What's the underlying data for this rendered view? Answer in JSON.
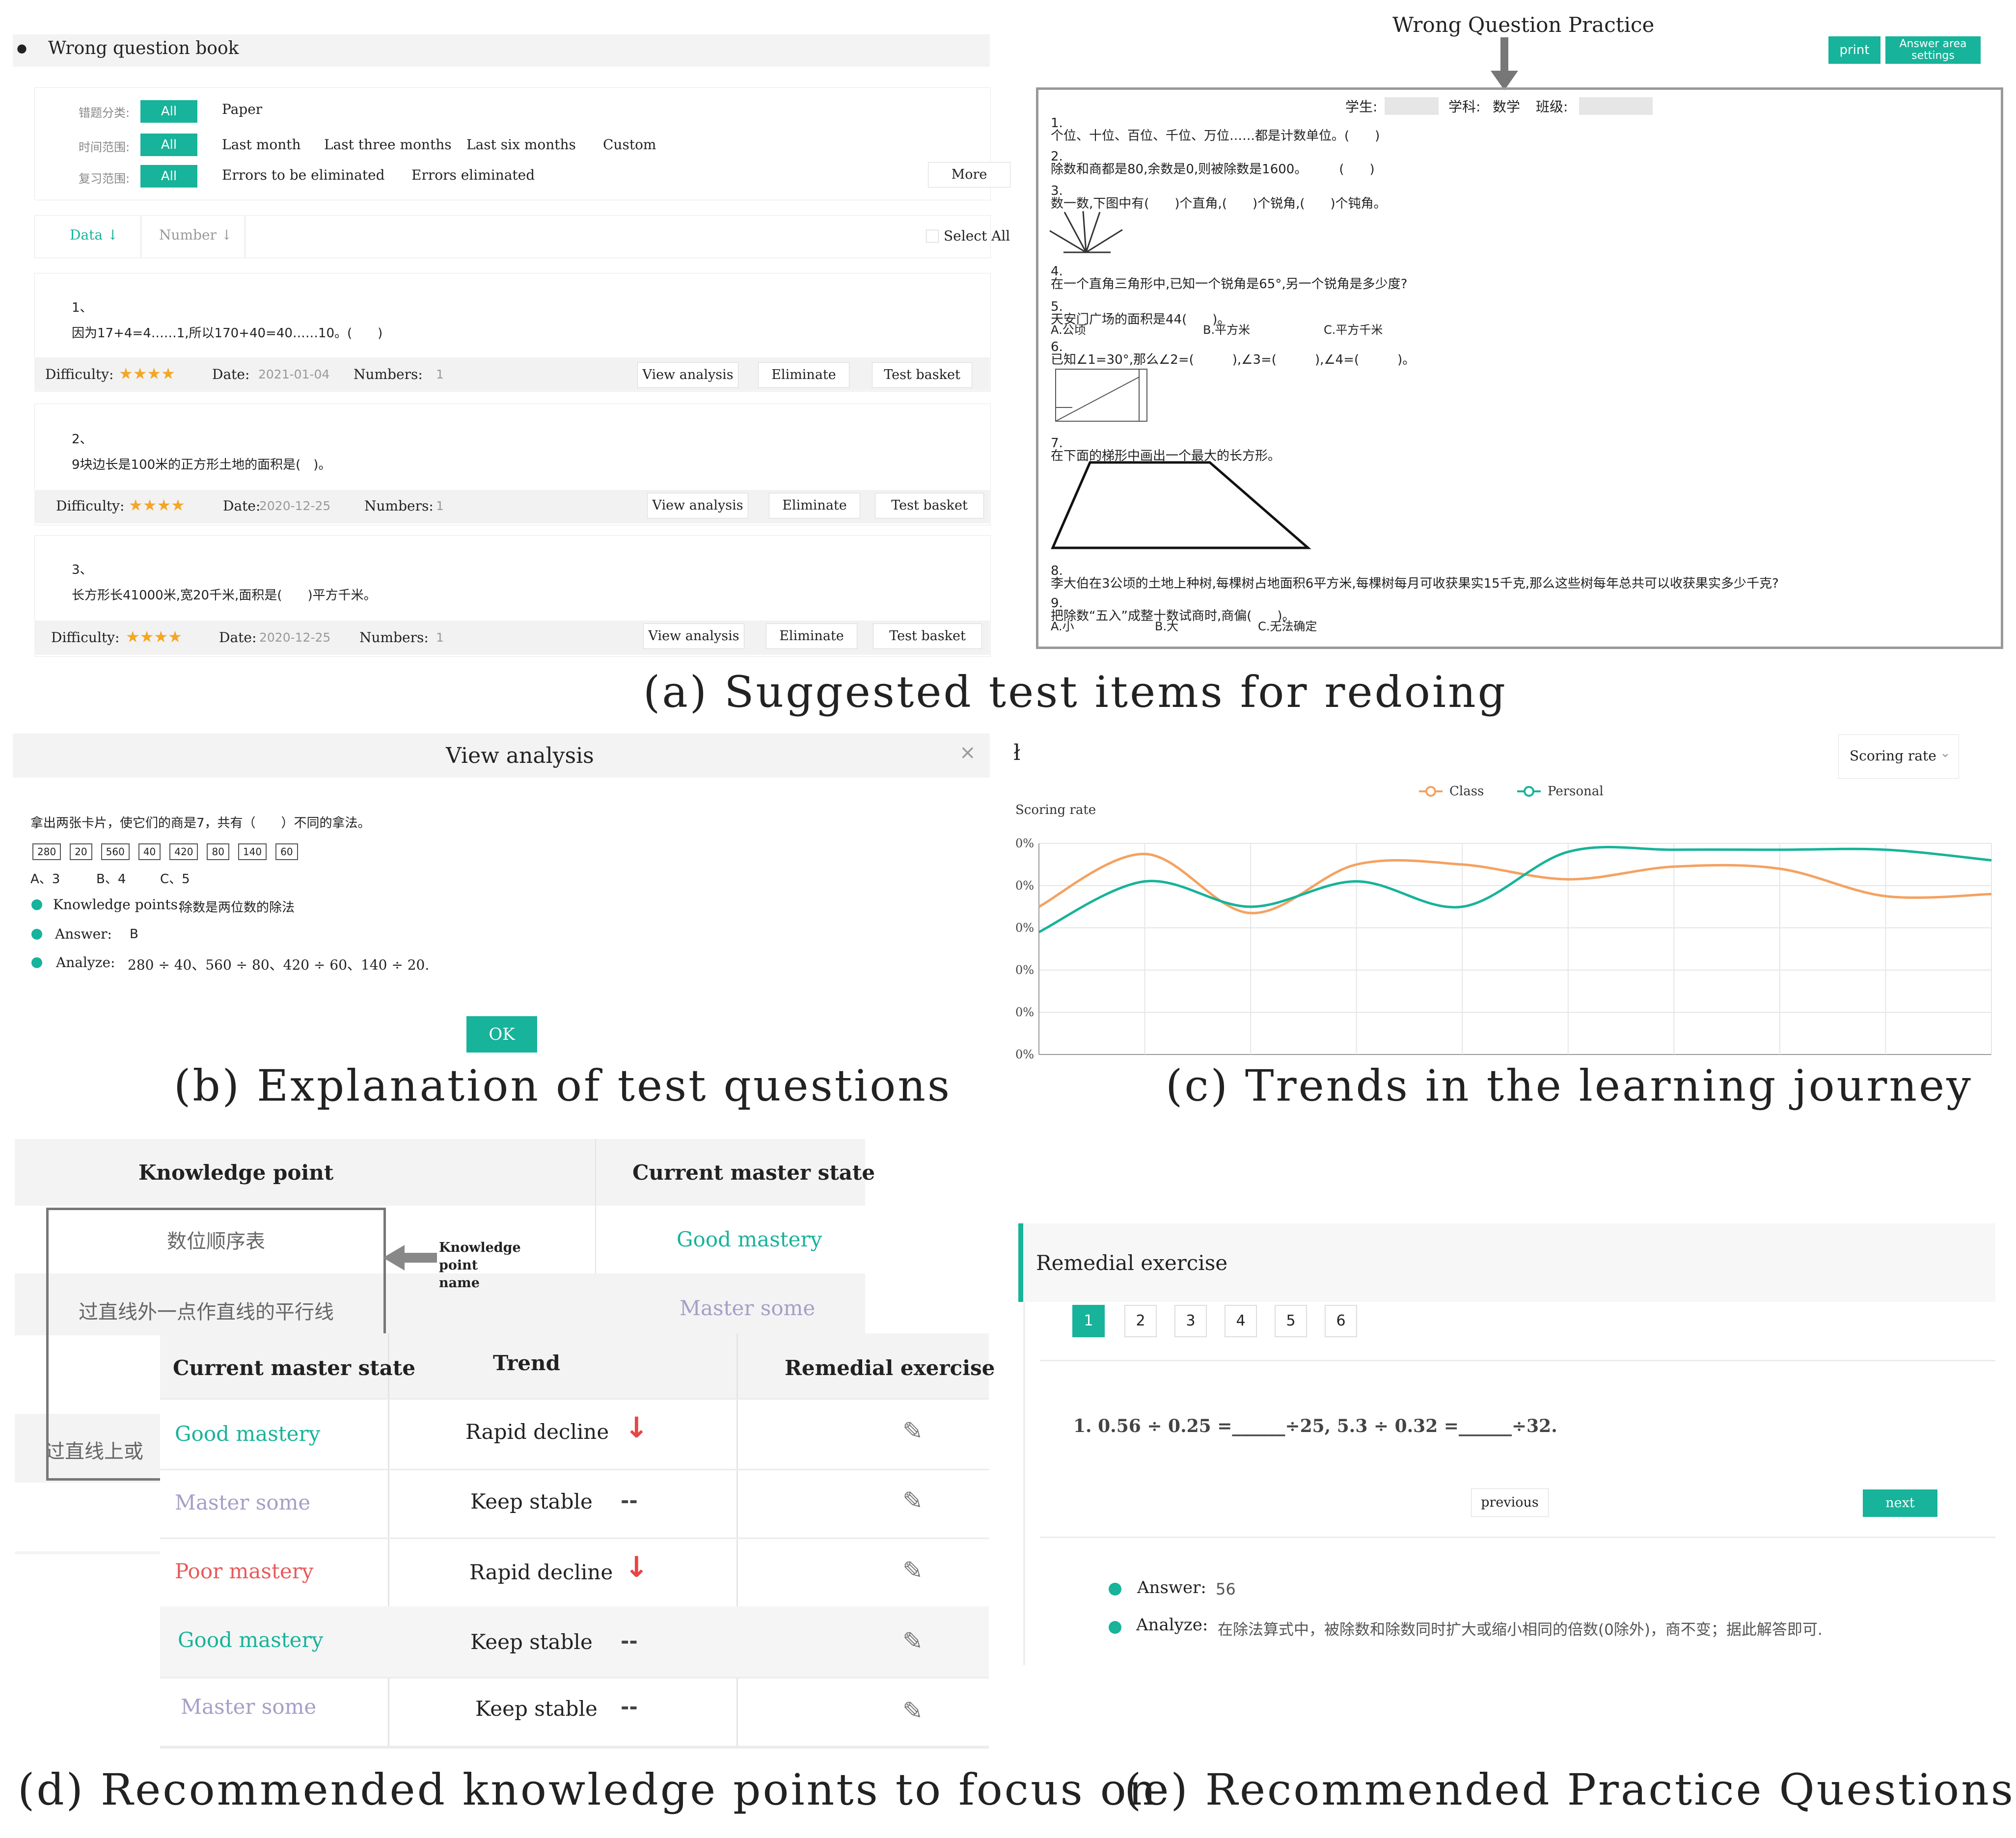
{
  "a": {
    "header_title": "Wrong question book",
    "filters": [
      {
        "label": "错题分类:",
        "chip": "All",
        "options": [
          "Paper"
        ]
      },
      {
        "label": "时间范围:",
        "chip": "All",
        "options": [
          "Last month",
          "Last three months",
          "Last six months",
          "Custom"
        ]
      },
      {
        "label": "复习范围:",
        "chip": "All",
        "options": [
          "Errors to be eliminated",
          "Errors eliminated"
        ]
      }
    ],
    "more": "More",
    "sort_data": "Data",
    "sort_number": "Number",
    "select_all": "Select All",
    "questions": [
      {
        "num": "1、",
        "text": "因为17+4=4……1,所以170+40=40……10。(　　)",
        "date": "2021-01-04",
        "numbers": "1"
      },
      {
        "num": "2、",
        "text": "9块边长是100米的正方形土地的面积是(　)。",
        "date": "2020-12-25",
        "numbers": "1"
      },
      {
        "num": "3、",
        "text": "长方形长41000米,宽20千米,面积是(　　)平方千米。",
        "date": "2020-12-25",
        "numbers": "1"
      }
    ],
    "difficulty_label": "Difficulty:",
    "date_label": "Date:",
    "numbers_label": "Numbers:",
    "stars": "★★★★",
    "view_analysis": "View analysis",
    "eliminate": "Eliminate",
    "test_basket": "Test basket",
    "practice_title": "Wrong Question Practice",
    "print": "print",
    "answer_area_settings": "Answer area settings",
    "sheet_header_student": "学生:",
    "sheet_header_subject": "学科:",
    "sheet_header_subject_value": "数学",
    "sheet_header_class": "班级:",
    "sheet_items": [
      {
        "n": "1.",
        "t": "个位、十位、百位、千位、万位……都是计数单位。(　　)"
      },
      {
        "n": "2.",
        "t": "除数和商都是80,余数是0,则被除数是1600。　　　(　　)"
      },
      {
        "n": "3.",
        "t": "数一数,下图中有(　　)个直角,(　　)个锐角,(　　)个钝角。"
      },
      {
        "n": "4.",
        "t": "在一个直角三角形中,已知一个锐角是65°,另一个锐角是多少度?"
      },
      {
        "n": "5.",
        "t": "天安门广场的面积是44(　　)。"
      },
      {
        "n": "6.",
        "t": "已知∠1=30°,那么∠2=(　　　),∠3=(　　　),∠4=(　　　)。"
      },
      {
        "n": "7.",
        "t": "在下面的梯形中画出一个最大的长方形。"
      },
      {
        "n": "8.",
        "t": "李大伯在3公顷的土地上种树,每棵树占地面积6平方米,每棵树每月可收获果实15千克,那么这些树每年总共可以收获果实多少千克?"
      },
      {
        "n": "9.",
        "t": "把除数“五入”成整十数试商时,商偏(　　)。"
      }
    ],
    "item5_options": [
      "A.公顷",
      "B.平方米",
      "C.平方千米"
    ],
    "item9_options": [
      "A.小",
      "B.大",
      "C.无法确定"
    ],
    "caption": "(a) Suggested test items for redoing"
  },
  "b": {
    "title": "View analysis",
    "close": "×",
    "question": "拿出两张卡片，使它们的商是7，共有（　　）不同的拿法。",
    "cards": [
      "280",
      "20",
      "560",
      "40",
      "420",
      "80",
      "140",
      "60"
    ],
    "options": [
      "A、3",
      "B、4",
      "C、5"
    ],
    "kp_label": "Knowledge points:",
    "kp_value": "除数是两位数的除法",
    "answer_label": "Answer:",
    "answer_value": "B",
    "analyze_label": "Analyze:",
    "analyze_value": "280 ÷ 40、560 ÷ 80、420 ÷ 60、140 ÷ 20.",
    "ok": "OK",
    "caption": "(b) Explanation of test questions"
  },
  "c": {
    "dropdown": "Scoring rate",
    "caption": "(c) Trends in the learning journey",
    "colors": {
      "class": "#f4a261",
      "personal": "#17b39a"
    },
    "chart_data": {
      "type": "line",
      "title": "",
      "ylabel": "Scoring rate",
      "yticks": [
        "0%",
        "0%",
        "0%",
        "0%",
        "0%",
        "0%"
      ],
      "ylim": [
        0,
        100
      ],
      "x": [
        0,
        1,
        2,
        3,
        4,
        5,
        6,
        7,
        8,
        9
      ],
      "series": [
        {
          "name": "Class",
          "values": [
            70,
            95,
            67,
            90,
            90,
            83,
            89,
            88,
            75,
            76
          ]
        },
        {
          "name": "Personal",
          "values": [
            58,
            82,
            70,
            82,
            70,
            96,
            97,
            97,
            97,
            92
          ]
        }
      ]
    }
  },
  "d": {
    "col_kp": "Knowledge point",
    "col_state": "Current master state",
    "back_rows": [
      {
        "kp": "数位顺序表",
        "state": "Good mastery",
        "cls": "good"
      },
      {
        "kp": "过直线外一点作直线的平行线",
        "state": "Master some",
        "cls": "some"
      }
    ],
    "partial_kp": "过直线上或",
    "annot": "Knowledge point name",
    "front_cols": [
      "Current master state",
      "Trend",
      "Remedial exercise"
    ],
    "rows": [
      {
        "state": "Good mastery",
        "cls": "good",
        "trend": "Rapid decline",
        "arrow": "down"
      },
      {
        "state": "Master some",
        "cls": "some",
        "trend": "Keep stable",
        "arrow": "flat"
      },
      {
        "state": "Poor mastery",
        "cls": "poor",
        "trend": "Rapid decline",
        "arrow": "down"
      },
      {
        "state": "Good mastery",
        "cls": "good",
        "trend": "Keep stable",
        "arrow": "flat"
      },
      {
        "state": "Master some",
        "cls": "some",
        "trend": "Keep stable",
        "arrow": "flat"
      }
    ],
    "arrow_down": "↓",
    "arrow_flat": "--",
    "edit_glyph": "✎",
    "caption": "(d) Recommended knowledge points to focus on"
  },
  "e": {
    "title": "Remedial exercise",
    "pages": [
      "1",
      "2",
      "3",
      "4",
      "5",
      "6"
    ],
    "question": "1. 0.56 ÷ 0.25 =______÷25, 5.3 ÷ 0.32 =______÷32.",
    "previous": "previous",
    "next": "next",
    "answer_label": "Answer:",
    "answer_value": "56",
    "analyze_label": "Analyze:",
    "analyze_value": "在除法算式中，被除数和除数同时扩大或缩小相同的倍数(0除外)，商不变；据此解答即可.",
    "caption": "(e) Recommended Practice Questions"
  }
}
